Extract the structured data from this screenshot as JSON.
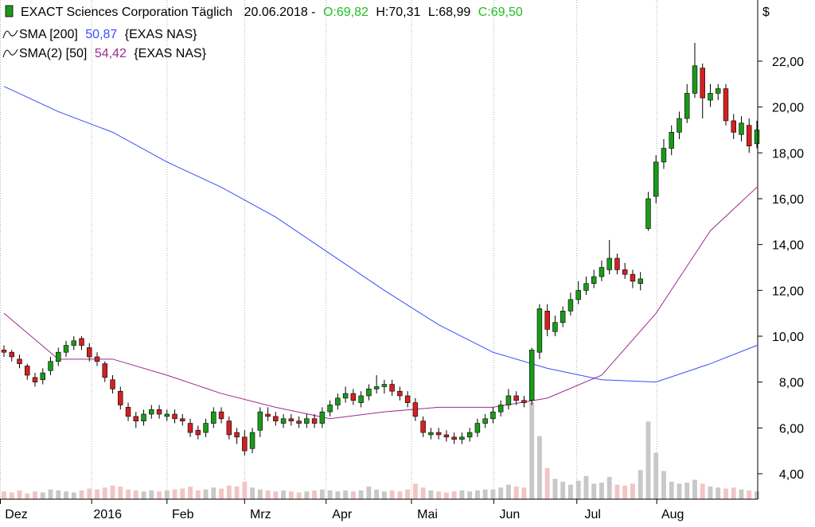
{
  "chart_data": {
    "type": "candlestick",
    "title": "EXACT Sciences Corporation Täglich",
    "date": "20.06.2018 -",
    "quote": [
      {
        "text": "O:69,82",
        "color": "#1fbf1f"
      },
      {
        "text": "H:70,31",
        "color": "#000000"
      },
      {
        "text": "L:68,99",
        "color": "#000000"
      },
      {
        "text": "C:69,50",
        "color": "#1fbf1f"
      }
    ],
    "currency": "$",
    "up_color": "#1a9a1a",
    "down_color": "#d42020",
    "volume_up_color": "#c8c8c8",
    "volume_down_color": "#f2c4c4",
    "grid": true,
    "ylim": [
      2.89,
      24.67
    ],
    "yticks": [
      {
        "value": 4,
        "label": "4,00"
      },
      {
        "value": 6,
        "label": "6,00"
      },
      {
        "value": 8,
        "label": "8,00"
      },
      {
        "value": 10,
        "label": "10,00"
      },
      {
        "value": 12,
        "label": "12,00"
      },
      {
        "value": 14,
        "label": "14,00"
      },
      {
        "value": 16,
        "label": "16,00"
      },
      {
        "value": 18,
        "label": "18,00"
      },
      {
        "value": 20,
        "label": "20,00"
      },
      {
        "value": 22,
        "label": "22,00"
      }
    ],
    "xticks": [
      {
        "value": -0.5,
        "label": "Dez"
      },
      {
        "value": 11.3,
        "label": "2016"
      },
      {
        "value": 21.0,
        "label": "Feb"
      },
      {
        "value": 31.0,
        "label": "Mrz"
      },
      {
        "value": 41.5,
        "label": "Apr"
      },
      {
        "value": 52.5,
        "label": "Mai"
      },
      {
        "value": 63.1,
        "label": "Jun"
      },
      {
        "value": 73.8,
        "label": "Jul"
      },
      {
        "value": 84.1,
        "label": "Aug"
      }
    ],
    "open": [
      9.4,
      9.3,
      9.0,
      8.7,
      8.2,
      8.1,
      8.5,
      8.9,
      9.3,
      9.6,
      9.9,
      9.5,
      9.1,
      8.8,
      8.1,
      7.6,
      6.9,
      6.5,
      6.3,
      6.6,
      6.8,
      6.5,
      6.6,
      6.4,
      6.2,
      5.9,
      5.8,
      6.2,
      6.7,
      6.3,
      5.8,
      5.6,
      5.1,
      5.9,
      6.6,
      6.5,
      6.2,
      6.4,
      6.3,
      6.2,
      6.4,
      6.2,
      6.7,
      7.0,
      7.3,
      7.5,
      7.1,
      7.4,
      7.7,
      7.8,
      7.9,
      7.6,
      7.4,
      7.1,
      6.3,
      5.7,
      5.8,
      5.7,
      5.6,
      5.5,
      5.6,
      5.8,
      6.2,
      6.4,
      6.7,
      7.0,
      7.4,
      7.2,
      7.2,
      9.3,
      11.1,
      10.2,
      10.6,
      11.1,
      11.6,
      12.0,
      12.3,
      12.6,
      12.9,
      13.4,
      12.9,
      12.7,
      12.3,
      14.7,
      16.1,
      17.6,
      18.2,
      18.9,
      19.5,
      20.6,
      21.7,
      20.3,
      20.6,
      20.8,
      19.4,
      18.8,
      19.2,
      18.4
    ],
    "high": [
      9.6,
      9.4,
      9.2,
      8.8,
      8.4,
      8.6,
      9.1,
      9.5,
      9.8,
      10.0,
      10.0,
      9.7,
      9.3,
      8.9,
      8.3,
      7.8,
      7.1,
      6.7,
      6.8,
      7.0,
      7.0,
      6.8,
      6.8,
      6.6,
      6.4,
      6.1,
      6.4,
      6.9,
      6.9,
      6.5,
      6.0,
      5.9,
      6.0,
      6.9,
      6.9,
      6.7,
      6.6,
      6.6,
      6.5,
      6.6,
      6.6,
      6.9,
      7.2,
      7.5,
      7.8,
      7.7,
      7.6,
      7.9,
      8.3,
      8.1,
      8.1,
      7.8,
      7.6,
      7.3,
      6.5,
      6.0,
      6.0,
      5.9,
      5.8,
      5.8,
      6.0,
      6.4,
      6.6,
      6.9,
      7.2,
      7.7,
      7.6,
      7.4,
      9.5,
      11.4,
      11.4,
      10.9,
      11.3,
      11.9,
      12.4,
      12.6,
      12.9,
      13.3,
      14.2,
      13.6,
      13.2,
      12.9,
      12.8,
      16.3,
      17.9,
      18.6,
      19.2,
      19.8,
      21.0,
      22.8,
      21.9,
      21.0,
      21.0,
      21.0,
      19.7,
      19.6,
      19.5,
      19.4
    ],
    "low": [
      9.1,
      8.9,
      8.6,
      8.1,
      7.8,
      7.9,
      8.3,
      8.7,
      9.1,
      9.4,
      9.4,
      8.9,
      8.7,
      8.0,
      7.5,
      6.8,
      6.3,
      6.0,
      6.1,
      6.4,
      6.4,
      6.3,
      6.2,
      6.1,
      5.6,
      5.5,
      5.6,
      6.0,
      6.2,
      5.5,
      5.3,
      4.8,
      4.9,
      5.6,
      6.3,
      6.1,
      6.0,
      6.1,
      6.0,
      6.0,
      6.0,
      6.0,
      6.5,
      6.8,
      7.1,
      7.0,
      6.9,
      7.2,
      7.5,
      7.5,
      7.4,
      7.2,
      6.9,
      6.3,
      5.6,
      5.5,
      5.5,
      5.4,
      5.3,
      5.3,
      5.4,
      5.6,
      6.0,
      6.2,
      6.5,
      6.8,
      7.0,
      6.9,
      7.0,
      9.0,
      10.0,
      10.0,
      10.4,
      10.9,
      11.4,
      11.8,
      12.1,
      12.4,
      12.7,
      12.7,
      12.5,
      12.1,
      12.0,
      14.6,
      15.8,
      17.3,
      17.9,
      18.6,
      19.3,
      20.4,
      19.5,
      20.0,
      20.3,
      19.2,
      18.6,
      18.5,
      18.0,
      18.2
    ],
    "close": [
      9.3,
      9.1,
      8.8,
      8.3,
      8.0,
      8.4,
      8.9,
      9.3,
      9.6,
      9.8,
      9.6,
      9.1,
      8.9,
      8.2,
      7.7,
      7.0,
      6.5,
      6.3,
      6.6,
      6.8,
      6.6,
      6.6,
      6.4,
      6.3,
      5.8,
      5.7,
      6.2,
      6.7,
      6.4,
      5.7,
      5.6,
      5.0,
      5.8,
      6.7,
      6.5,
      6.3,
      6.4,
      6.3,
      6.2,
      6.4,
      6.2,
      6.7,
      7.0,
      7.3,
      7.5,
      7.2,
      7.4,
      7.7,
      7.8,
      7.9,
      7.6,
      7.4,
      7.1,
      6.5,
      5.8,
      5.8,
      5.7,
      5.6,
      5.5,
      5.6,
      5.8,
      6.2,
      6.4,
      6.7,
      7.0,
      7.4,
      7.2,
      7.1,
      9.4,
      11.2,
      10.3,
      10.6,
      11.1,
      11.6,
      12.0,
      12.3,
      12.6,
      13.0,
      13.4,
      12.9,
      12.7,
      12.4,
      12.5,
      16.0,
      17.6,
      18.2,
      18.9,
      19.5,
      20.6,
      21.8,
      20.4,
      20.6,
      20.8,
      19.4,
      18.9,
      19.3,
      18.3,
      19.0
    ],
    "volume": [
      0.8,
      0.7,
      0.9,
      0.6,
      0.8,
      0.7,
      1.0,
      0.9,
      0.8,
      0.7,
      0.9,
      1.1,
      1.0,
      1.2,
      1.4,
      1.3,
      1.0,
      0.9,
      0.8,
      0.9,
      0.8,
      0.9,
      1.0,
      1.1,
      1.3,
      0.9,
      1.0,
      1.2,
      1.1,
      1.4,
      1.3,
      1.8,
      1.2,
      1.0,
      0.9,
      0.8,
      0.9,
      0.8,
      0.7,
      0.8,
      0.9,
      1.0,
      0.9,
      0.8,
      0.9,
      0.8,
      0.9,
      1.3,
      1.0,
      0.8,
      0.9,
      0.8,
      1.0,
      1.6,
      1.2,
      0.9,
      0.8,
      0.7,
      0.8,
      0.9,
      0.8,
      0.9,
      1.0,
      1.0,
      1.2,
      1.5,
      1.3,
      1.2,
      10.0,
      6.5,
      3.2,
      2.1,
      1.8,
      1.5,
      1.9,
      2.4,
      1.6,
      1.7,
      2.3,
      1.5,
      1.4,
      1.6,
      3.0,
      8.0,
      4.8,
      2.9,
      1.8,
      1.6,
      1.7,
      2.0,
      1.6,
      1.3,
      1.2,
      1.1,
      1.2,
      1.0,
      0.9,
      0.8
    ],
    "lines": [
      {
        "name": "SMA [200]",
        "legend_value": "50,87",
        "source": "{EXAS NAS}",
        "color": "#3a4dff",
        "x": [
          0,
          7,
          14,
          21,
          28,
          35,
          42,
          49,
          56,
          63,
          70,
          77,
          84,
          91,
          97
        ],
        "values": [
          20.9,
          19.8,
          18.9,
          17.6,
          16.5,
          15.2,
          13.6,
          12.0,
          10.5,
          9.3,
          8.6,
          8.1,
          8.0,
          8.8,
          9.6
        ]
      },
      {
        "name": "SMA(2) [50]",
        "legend_value": "54,42",
        "source": "{EXAS NAS}",
        "color": "#9b2a8f",
        "x": [
          0,
          7,
          14,
          21,
          28,
          35,
          42,
          49,
          56,
          63,
          70,
          77,
          84,
          91,
          97
        ],
        "values": [
          11.0,
          9.0,
          9.0,
          8.3,
          7.5,
          6.9,
          6.4,
          6.7,
          6.9,
          6.9,
          7.3,
          8.3,
          11.0,
          14.6,
          16.5
        ]
      }
    ]
  }
}
